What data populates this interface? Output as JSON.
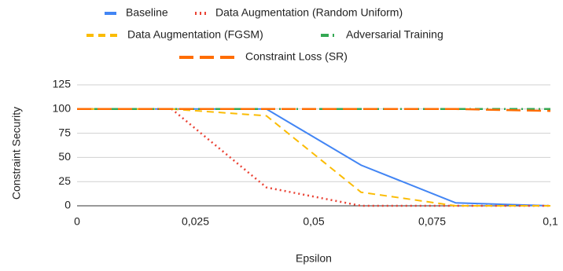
{
  "chart_data": {
    "type": "line",
    "xlabel": "Epsilon",
    "ylabel": "Constraint Security",
    "x": [
      0,
      0.02,
      0.04,
      0.06,
      0.08,
      0.1
    ],
    "series": [
      {
        "name": "Baseline",
        "color": "#4285f4",
        "values": [
          100,
          100,
          100,
          42,
          3,
          0
        ]
      },
      {
        "name": "Data Augmentation (Random Uniform)",
        "color": "#ea4335",
        "values": [
          100,
          100,
          19,
          0,
          0,
          0
        ]
      },
      {
        "name": "Data Augmentation (FGSM)",
        "color": "#fbbc04",
        "values": [
          100,
          100,
          93,
          14,
          0,
          0
        ]
      },
      {
        "name": "Adversarial Training",
        "color": "#34a853",
        "values": [
          100,
          100,
          100,
          100,
          100,
          100
        ]
      },
      {
        "name": "Constraint Loss (SR)",
        "color": "#ff6d01",
        "values": [
          100,
          100,
          100,
          100,
          100,
          98
        ]
      }
    ],
    "xlim": [
      0,
      0.1
    ],
    "xticks": [
      0,
      {
        "value": 0.025,
        "label": "0,025"
      },
      {
        "value": 0.05,
        "label": "0,05"
      },
      {
        "value": 0.075,
        "label": "0,075"
      },
      {
        "value": 0.1,
        "label": "0,1"
      }
    ],
    "ylim": [
      0,
      125
    ],
    "yticks": [
      0,
      25,
      50,
      75,
      100,
      125
    ],
    "grid": true,
    "legend": "top"
  }
}
